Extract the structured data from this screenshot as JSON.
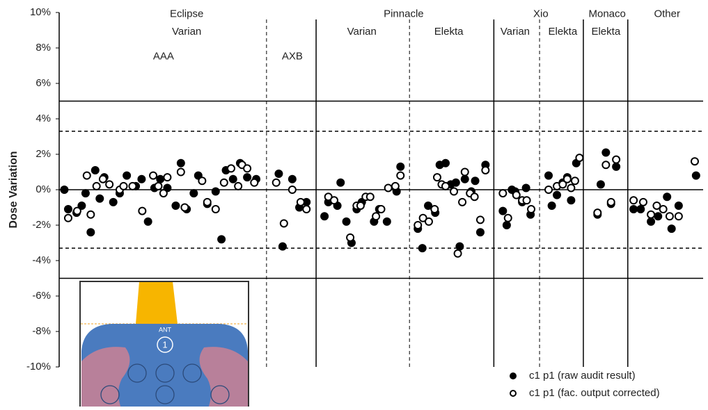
{
  "chart_data": {
    "type": "scatter",
    "y_label": "Dose Variation",
    "xlim": [
      0,
      100
    ],
    "ylim": [
      -10,
      10
    ],
    "yticks": [
      {
        "value": 10,
        "label": "10%"
      },
      {
        "value": 8,
        "label": "8%"
      },
      {
        "value": 6,
        "label": "6%"
      },
      {
        "value": 4,
        "label": "4%"
      },
      {
        "value": 2,
        "label": "2%"
      },
      {
        "value": 0,
        "label": "0%"
      },
      {
        "value": -2,
        "label": "-2%"
      },
      {
        "value": -4,
        "label": "-4%"
      },
      {
        "value": -6,
        "label": "-6%"
      },
      {
        "value": -8,
        "label": "-8%"
      },
      {
        "value": -10,
        "label": "-10%"
      }
    ],
    "legend": "lower right",
    "hlines": [
      {
        "y": 5,
        "style": "solid"
      },
      {
        "y": 3.3,
        "style": "dashed"
      },
      {
        "y": 0,
        "style": "solid"
      },
      {
        "y": -3.3,
        "style": "dashed"
      },
      {
        "y": -5,
        "style": "solid"
      }
    ],
    "vlines": [
      {
        "x": 32.2,
        "style": "dashed"
      },
      {
        "x": 39.9,
        "style": "solid"
      },
      {
        "x": 54.4,
        "style": "dashed"
      },
      {
        "x": 67.5,
        "style": "solid"
      },
      {
        "x": 74.6,
        "style": "dashed"
      },
      {
        "x": 81.4,
        "style": "solid"
      },
      {
        "x": 88.3,
        "style": "solid"
      }
    ],
    "annotations": [
      {
        "text": "Eclipse",
        "x": 19.8,
        "y": 9.9
      },
      {
        "text": "Varian",
        "x": 19.8,
        "y": 8.9
      },
      {
        "text": "AAA",
        "x": 16.2,
        "y": 7.5
      },
      {
        "text": "AXB",
        "x": 36.2,
        "y": 7.5
      },
      {
        "text": "Pinnacle",
        "x": 53.5,
        "y": 9.9
      },
      {
        "text": "Varian",
        "x": 47.0,
        "y": 8.9
      },
      {
        "text": "Elekta",
        "x": 60.5,
        "y": 8.9
      },
      {
        "text": "Xio",
        "x": 74.8,
        "y": 9.9
      },
      {
        "text": "Varian",
        "x": 70.8,
        "y": 8.9
      },
      {
        "text": "Elekta",
        "x": 78.2,
        "y": 8.9
      },
      {
        "text": "Monaco",
        "x": 85.1,
        "y": 9.9
      },
      {
        "text": "Elekta",
        "x": 84.9,
        "y": 8.9
      },
      {
        "text": "Other",
        "x": 94.4,
        "y": 9.9
      }
    ],
    "series": [
      {
        "name": "c1 p1 (raw audit result)",
        "color": "#000000",
        "filled": true,
        "x": [
          0.8,
          1.4,
          2.7,
          3.5,
          4.1,
          4.9,
          5.6,
          6.3,
          7.0,
          8.4,
          9.4,
          10.5,
          11.9,
          12.8,
          13.8,
          14.8,
          15.7,
          16.8,
          18.1,
          18.9,
          19.8,
          20.9,
          21.6,
          23.0,
          24.3,
          25.2,
          25.9,
          27.0,
          28.1,
          29.2,
          30.6,
          34.1,
          34.7,
          36.2,
          37.3,
          38.4,
          41.2,
          41.8,
          43.2,
          43.7,
          44.6,
          45.4,
          46.2,
          47.0,
          48.9,
          49.7,
          50.9,
          52.4,
          53.0,
          55.7,
          56.4,
          57.3,
          58.4,
          59.1,
          60.0,
          60.8,
          61.6,
          62.2,
          63.0,
          64.0,
          64.6,
          65.4,
          66.2,
          68.9,
          69.5,
          70.3,
          70.8,
          71.9,
          72.5,
          73.2,
          76.0,
          76.5,
          77.3,
          78.2,
          78.9,
          79.5,
          80.3,
          83.6,
          84.1,
          84.9,
          85.7,
          86.5,
          89.2,
          90.3,
          91.9,
          93.0,
          94.4,
          95.1,
          96.2,
          98.9
        ],
        "values": [
          0,
          -1.1,
          -1.3,
          -0.9,
          -0.2,
          -2.4,
          1.1,
          -0.5,
          0.7,
          -0.7,
          -0.2,
          0.8,
          0.2,
          0.6,
          -1.8,
          0.1,
          0.6,
          0.1,
          -0.9,
          1.5,
          -1.1,
          -0.2,
          0.8,
          -0.8,
          -0.1,
          -2.8,
          1.1,
          0.6,
          1.5,
          0.7,
          0.6,
          0.9,
          -3.2,
          0.6,
          -1.0,
          -0.7,
          -1.5,
          -0.7,
          -0.9,
          0.4,
          -1.8,
          -3.0,
          -1.1,
          -0.7,
          -1.8,
          -1.1,
          -1.8,
          -0.1,
          1.3,
          -2.2,
          -3.3,
          -0.9,
          -1.3,
          1.4,
          1.5,
          0.3,
          0.4,
          -3.2,
          0.6,
          -0.1,
          0.5,
          -2.4,
          1.4,
          -1.2,
          -2.0,
          0,
          -0.1,
          -0.7,
          0.1,
          -1.4,
          0.8,
          -0.9,
          -0.3,
          0.4,
          0.7,
          -0.6,
          1.5,
          -1.4,
          0.3,
          2.1,
          -0.8,
          1.3,
          -1.1,
          -1.1,
          -1.8,
          -1.5,
          -0.4,
          -2.2,
          -0.9,
          0.8
        ]
      },
      {
        "name": "c1 p1 (fac. output corrected)",
        "color": "#000000",
        "filled": false,
        "x": [
          1.4,
          2.8,
          4.3,
          4.9,
          5.8,
          6.8,
          7.8,
          9.4,
          10.0,
          11.4,
          12.9,
          14.6,
          15.4,
          16.2,
          16.8,
          18.9,
          19.5,
          22.2,
          23.0,
          24.3,
          25.6,
          26.7,
          27.8,
          28.4,
          29.2,
          30.3,
          33.7,
          34.9,
          36.2,
          37.5,
          38.4,
          41.8,
          42.7,
          45.2,
          46.2,
          46.8,
          47.6,
          48.3,
          49.2,
          50.0,
          51.1,
          52.2,
          53.0,
          55.7,
          56.5,
          57.4,
          58.3,
          58.7,
          59.4,
          60.0,
          61.3,
          61.9,
          62.6,
          63.0,
          63.8,
          64.5,
          65.4,
          66.2,
          68.9,
          69.7,
          71.0,
          71.9,
          72.6,
          73.3,
          76.0,
          77.3,
          78.2,
          78.9,
          79.5,
          80.1,
          80.8,
          83.6,
          84.9,
          85.7,
          86.5,
          89.2,
          90.7,
          91.9,
          92.8,
          93.8,
          94.8,
          96.2,
          98.7
        ],
        "values": [
          -1.6,
          -1.2,
          0.8,
          -1.4,
          0.2,
          0.6,
          0.3,
          0,
          0.2,
          0.2,
          -1.2,
          0.8,
          0.2,
          -0.2,
          0.7,
          1.0,
          -1.0,
          0.5,
          -0.7,
          -1.1,
          0.4,
          1.2,
          0.2,
          1.4,
          1.2,
          0.4,
          0.4,
          -1.9,
          0,
          -0.7,
          -1.1,
          -0.4,
          -0.6,
          -2.7,
          -0.9,
          -0.9,
          -0.4,
          -0.4,
          -1.5,
          -1.1,
          0.1,
          0.2,
          0.8,
          -2.0,
          -1.6,
          -1.8,
          -1.1,
          0.7,
          0.3,
          0.2,
          -0.1,
          -3.6,
          -0.7,
          1.0,
          -0.2,
          -0.4,
          -1.7,
          1.1,
          -0.2,
          -1.6,
          -0.3,
          -0.6,
          -0.6,
          -1.1,
          0,
          0.2,
          0.3,
          0.6,
          0.1,
          0.5,
          1.8,
          -1.3,
          1.4,
          -0.7,
          1.7,
          -0.6,
          -0.7,
          -1.4,
          -0.9,
          -1.1,
          -1.5,
          -1.5,
          1.6
        ]
      }
    ]
  },
  "inset": {
    "label": "ANT",
    "marker": "1"
  }
}
